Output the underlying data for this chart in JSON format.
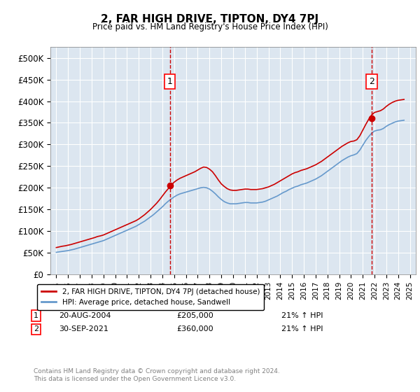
{
  "title": "2, FAR HIGH DRIVE, TIPTON, DY4 7PJ",
  "subtitle": "Price paid vs. HM Land Registry's House Price Index (HPI)",
  "background_color": "#dce6f0",
  "plot_bg_color": "#dce6f0",
  "red_line_color": "#cc0000",
  "blue_line_color": "#6699cc",
  "marker1_year": 2004.64,
  "marker1_value": 205000,
  "marker1_label": "1",
  "marker2_year": 2021.75,
  "marker2_value": 360000,
  "marker2_label": "2",
  "ylim_min": 0,
  "ylim_max": 525000,
  "xlim_min": 1994.5,
  "xlim_max": 2025.5,
  "yticks": [
    0,
    50000,
    100000,
    150000,
    200000,
    250000,
    300000,
    350000,
    400000,
    450000,
    500000
  ],
  "ytick_labels": [
    "£0",
    "£50K",
    "£100K",
    "£150K",
    "£200K",
    "£250K",
    "£300K",
    "£350K",
    "£400K",
    "£450K",
    "£500K"
  ],
  "xticks": [
    1995,
    1996,
    1997,
    1998,
    1999,
    2000,
    2001,
    2002,
    2003,
    2004,
    2005,
    2006,
    2007,
    2008,
    2009,
    2010,
    2011,
    2012,
    2013,
    2014,
    2015,
    2016,
    2017,
    2018,
    2019,
    2020,
    2021,
    2022,
    2023,
    2024,
    2025
  ],
  "legend_label_red": "2, FAR HIGH DRIVE, TIPTON, DY4 7PJ (detached house)",
  "legend_label_blue": "HPI: Average price, detached house, Sandwell",
  "annotation1_date": "20-AUG-2004",
  "annotation1_price": "£205,000",
  "annotation1_hpi": "21% ↑ HPI",
  "annotation2_date": "30-SEP-2021",
  "annotation2_price": "£360,000",
  "annotation2_hpi": "21% ↑ HPI",
  "footer": "Contains HM Land Registry data © Crown copyright and database right 2024.\nThis data is licensed under the Open Government Licence v3.0.",
  "red_x": [
    1995.0,
    1995.25,
    1995.5,
    1995.75,
    1996.0,
    1996.25,
    1996.5,
    1996.75,
    1997.0,
    1997.25,
    1997.5,
    1997.75,
    1998.0,
    1998.25,
    1998.5,
    1998.75,
    1999.0,
    1999.25,
    1999.5,
    1999.75,
    2000.0,
    2000.25,
    2000.5,
    2000.75,
    2001.0,
    2001.25,
    2001.5,
    2001.75,
    2002.0,
    2002.25,
    2002.5,
    2002.75,
    2003.0,
    2003.25,
    2003.5,
    2003.75,
    2004.0,
    2004.25,
    2004.5,
    2004.75,
    2005.0,
    2005.25,
    2005.5,
    2005.75,
    2006.0,
    2006.25,
    2006.5,
    2006.75,
    2007.0,
    2007.25,
    2007.5,
    2007.75,
    2008.0,
    2008.25,
    2008.5,
    2008.75,
    2009.0,
    2009.25,
    2009.5,
    2009.75,
    2010.0,
    2010.25,
    2010.5,
    2010.75,
    2011.0,
    2011.25,
    2011.5,
    2011.75,
    2012.0,
    2012.25,
    2012.5,
    2012.75,
    2013.0,
    2013.25,
    2013.5,
    2013.75,
    2014.0,
    2014.25,
    2014.5,
    2014.75,
    2015.0,
    2015.25,
    2015.5,
    2015.75,
    2016.0,
    2016.25,
    2016.5,
    2016.75,
    2017.0,
    2017.25,
    2017.5,
    2017.75,
    2018.0,
    2018.25,
    2018.5,
    2018.75,
    2019.0,
    2019.25,
    2019.5,
    2019.75,
    2020.0,
    2020.25,
    2020.5,
    2020.75,
    2021.0,
    2021.25,
    2021.5,
    2021.75,
    2022.0,
    2022.25,
    2022.5,
    2022.75,
    2023.0,
    2023.25,
    2023.5,
    2023.75,
    2024.0,
    2024.25,
    2024.5
  ],
  "red_y": [
    62000,
    63500,
    65000,
    66000,
    67500,
    69000,
    71000,
    73000,
    75000,
    77000,
    79000,
    81000,
    83000,
    85000,
    87500,
    89000,
    91000,
    94000,
    97000,
    100000,
    103000,
    106000,
    109000,
    112000,
    115000,
    118000,
    121000,
    124000,
    128000,
    133000,
    138000,
    144000,
    150000,
    157000,
    164000,
    172000,
    181000,
    190000,
    198000,
    206000,
    213000,
    218000,
    222000,
    225000,
    228000,
    231000,
    234000,
    237000,
    241000,
    245000,
    248000,
    247000,
    243000,
    237000,
    228000,
    218000,
    209000,
    203000,
    198000,
    195000,
    194000,
    194000,
    195000,
    196000,
    197000,
    197000,
    196000,
    196000,
    196000,
    197000,
    198000,
    200000,
    202000,
    205000,
    208000,
    212000,
    216000,
    220000,
    224000,
    228000,
    232000,
    235000,
    237000,
    240000,
    242000,
    244000,
    247000,
    250000,
    253000,
    257000,
    261000,
    266000,
    271000,
    276000,
    281000,
    286000,
    291000,
    296000,
    300000,
    304000,
    307000,
    308000,
    311000,
    320000,
    333000,
    346000,
    358000,
    368000,
    374000,
    376000,
    378000,
    382000,
    388000,
    393000,
    397000,
    400000,
    402000,
    403000,
    404000
  ],
  "blue_x": [
    1995.0,
    1995.25,
    1995.5,
    1995.75,
    1996.0,
    1996.25,
    1996.5,
    1996.75,
    1997.0,
    1997.25,
    1997.5,
    1997.75,
    1998.0,
    1998.25,
    1998.5,
    1998.75,
    1999.0,
    1999.25,
    1999.5,
    1999.75,
    2000.0,
    2000.25,
    2000.5,
    2000.75,
    2001.0,
    2001.25,
    2001.5,
    2001.75,
    2002.0,
    2002.25,
    2002.5,
    2002.75,
    2003.0,
    2003.25,
    2003.5,
    2003.75,
    2004.0,
    2004.25,
    2004.5,
    2004.75,
    2005.0,
    2005.25,
    2005.5,
    2005.75,
    2006.0,
    2006.25,
    2006.5,
    2006.75,
    2007.0,
    2007.25,
    2007.5,
    2007.75,
    2008.0,
    2008.25,
    2008.5,
    2008.75,
    2009.0,
    2009.25,
    2009.5,
    2009.75,
    2010.0,
    2010.25,
    2010.5,
    2010.75,
    2011.0,
    2011.25,
    2011.5,
    2011.75,
    2012.0,
    2012.25,
    2012.5,
    2012.75,
    2013.0,
    2013.25,
    2013.5,
    2013.75,
    2014.0,
    2014.25,
    2014.5,
    2014.75,
    2015.0,
    2015.25,
    2015.5,
    2015.75,
    2016.0,
    2016.25,
    2016.5,
    2016.75,
    2017.0,
    2017.25,
    2017.5,
    2017.75,
    2018.0,
    2018.25,
    2018.5,
    2018.75,
    2019.0,
    2019.25,
    2019.5,
    2019.75,
    2020.0,
    2020.25,
    2020.5,
    2020.75,
    2021.0,
    2021.25,
    2021.5,
    2021.75,
    2022.0,
    2022.25,
    2022.5,
    2022.75,
    2023.0,
    2023.25,
    2023.5,
    2023.75,
    2024.0,
    2024.25,
    2024.5
  ],
  "blue_y": [
    51000,
    52000,
    53000,
    54000,
    55000,
    56500,
    58000,
    60000,
    62000,
    64000,
    66000,
    68000,
    70000,
    72000,
    74000,
    76000,
    78000,
    81000,
    84000,
    87000,
    90000,
    93000,
    96000,
    99000,
    102000,
    105000,
    108000,
    111000,
    115000,
    119000,
    123000,
    128000,
    133000,
    138000,
    144000,
    150000,
    156000,
    163000,
    169000,
    174000,
    179000,
    183000,
    186000,
    188000,
    190000,
    192000,
    194000,
    196000,
    198000,
    200000,
    201000,
    200000,
    197000,
    192000,
    186000,
    179000,
    173000,
    168000,
    165000,
    163000,
    163000,
    163000,
    164000,
    165000,
    166000,
    166000,
    165000,
    165000,
    165000,
    166000,
    167000,
    169000,
    172000,
    175000,
    178000,
    181000,
    185000,
    189000,
    192000,
    196000,
    199000,
    202000,
    204000,
    207000,
    209000,
    211000,
    214000,
    217000,
    220000,
    224000,
    228000,
    233000,
    238000,
    243000,
    248000,
    253000,
    258000,
    263000,
    267000,
    271000,
    274000,
    276000,
    279000,
    287000,
    298000,
    309000,
    318000,
    326000,
    331000,
    333000,
    334000,
    337000,
    342000,
    346000,
    349000,
    352000,
    354000,
    355000,
    356000
  ]
}
